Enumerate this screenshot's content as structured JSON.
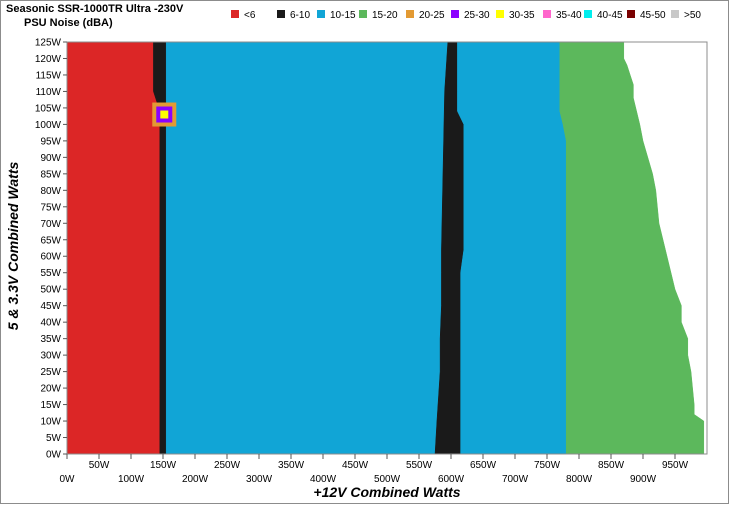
{
  "chart_data": {
    "type": "heatmap",
    "title": "Seasonic SSR-1000TR Ultra -230V",
    "subtitle": "PSU Noise (dBA)",
    "xlabel": "+12V Combined Watts",
    "ylabel": "5 & 3.3V Combined Watts",
    "x_ticks_top_row": [
      "50W",
      "150W",
      "250W",
      "350W",
      "450W",
      "550W",
      "650W",
      "750W",
      "850W",
      "950W"
    ],
    "x_ticks_bottom_row": [
      "0W",
      "100W",
      "200W",
      "300W",
      "400W",
      "500W",
      "600W",
      "700W",
      "800W",
      "900W"
    ],
    "y_ticks": [
      "125W",
      "120W",
      "115W",
      "110W",
      "105W",
      "100W",
      "95W",
      "90W",
      "85W",
      "80W",
      "75W",
      "70W",
      "65W",
      "60W",
      "55W",
      "50W",
      "45W",
      "40W",
      "35W",
      "30W",
      "25W",
      "20W",
      "15W",
      "10W",
      "5W",
      "0W"
    ],
    "xlim": [
      0,
      1000
    ],
    "ylim": [
      0,
      125
    ],
    "legend_position": "top",
    "legend": [
      {
        "label": "<6",
        "color": "#dc2626"
      },
      {
        "label": "6-10",
        "color": "#1a1a1a"
      },
      {
        "label": "10-15",
        "color": "#11a5d6"
      },
      {
        "label": "15-20",
        "color": "#5cb85c"
      },
      {
        "label": "20-25",
        "color": "#e39a33"
      },
      {
        "label": "25-30",
        "color": "#8b00ff"
      },
      {
        "label": "30-35",
        "color": "#ffff00"
      },
      {
        "label": "35-40",
        "color": "#ff66cc"
      },
      {
        "label": "40-45",
        "color": "#00eeee"
      },
      {
        "label": "45-50",
        "color": "#7a0000"
      },
      {
        "label": ">50",
        "color": "#c8c8c8"
      }
    ],
    "regions": {
      "red_6_end_watts": [
        [
          0,
          145
        ],
        [
          20,
          145
        ],
        [
          45,
          145
        ],
        [
          60,
          145
        ],
        [
          100,
          145
        ],
        [
          104,
          145
        ],
        [
          110,
          135
        ],
        [
          125,
          135
        ]
      ],
      "black_6_10_end_watts": [
        [
          0,
          155
        ],
        [
          125,
          155
        ]
      ],
      "blue_left_start_black_band": [
        [
          0,
          575
        ],
        [
          10,
          578
        ],
        [
          25,
          583
        ],
        [
          35,
          583
        ],
        [
          45,
          585
        ],
        [
          55,
          585
        ],
        [
          62,
          585
        ],
        [
          110,
          590
        ],
        [
          125,
          595
        ]
      ],
      "blue_right_start_watts": [
        [
          0,
          615
        ],
        [
          10,
          615
        ],
        [
          25,
          615
        ],
        [
          40,
          615
        ],
        [
          55,
          615
        ],
        [
          62,
          620
        ],
        [
          100,
          620
        ],
        [
          104,
          610
        ],
        [
          110,
          610
        ],
        [
          125,
          610
        ]
      ],
      "green_start_watts": [
        [
          0,
          780
        ],
        [
          95,
          780
        ],
        [
          100,
          775
        ],
        [
          104,
          770
        ],
        [
          110,
          770
        ],
        [
          125,
          770
        ]
      ],
      "green_end_watts": [
        [
          0,
          995
        ],
        [
          10,
          995
        ],
        [
          12,
          980
        ],
        [
          15,
          980
        ],
        [
          25,
          975
        ],
        [
          30,
          970
        ],
        [
          35,
          970
        ],
        [
          40,
          960
        ],
        [
          45,
          960
        ],
        [
          50,
          950
        ],
        [
          62,
          935
        ],
        [
          70,
          925
        ],
        [
          80,
          920
        ],
        [
          85,
          915
        ],
        [
          95,
          900
        ],
        [
          100,
          895
        ],
        [
          108,
          885
        ],
        [
          112,
          885
        ],
        [
          115,
          880
        ],
        [
          118,
          875
        ],
        [
          120,
          870
        ],
        [
          125,
          870
        ]
      ]
    },
    "hotspot": {
      "x": 152,
      "y": 103
    }
  }
}
